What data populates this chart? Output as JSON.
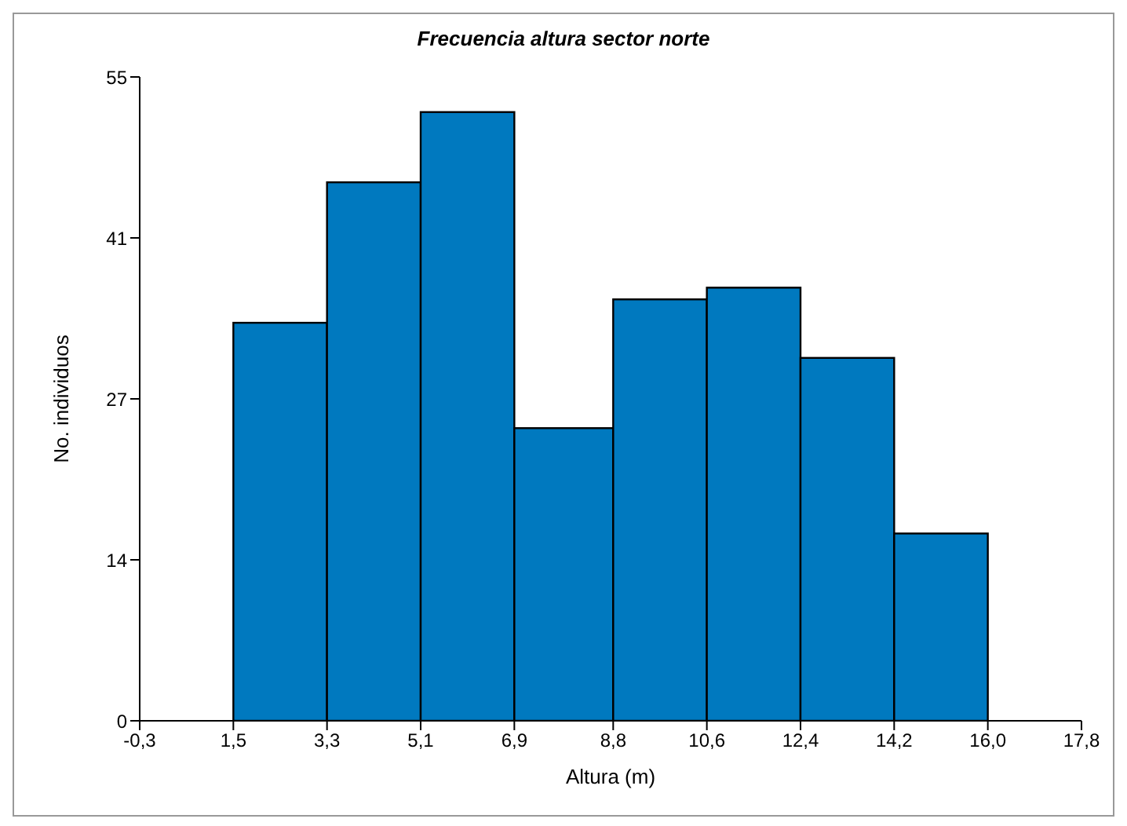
{
  "chart_data": {
    "type": "histogram",
    "title": "Frecuencia altura sector norte",
    "xlabel": "Altura (m)",
    "ylabel": "No. individuos",
    "bins": [
      1.5,
      3.3,
      5.1,
      6.9,
      8.8,
      10.6,
      12.4,
      14.2,
      16.0
    ],
    "values": [
      34,
      46,
      52,
      25,
      36,
      37,
      31,
      16
    ],
    "color": "#0079bf",
    "xlim": [
      -0.3,
      17.8
    ],
    "xticks": [
      {
        "value": -0.3,
        "label": "-0,3"
      },
      {
        "value": 1.5,
        "label": "1,5"
      },
      {
        "value": 3.3,
        "label": "3,3"
      },
      {
        "value": 5.1,
        "label": "5,1"
      },
      {
        "value": 6.9,
        "label": "6,9"
      },
      {
        "value": 8.8,
        "label": "8,8"
      },
      {
        "value": 10.6,
        "label": "10,6"
      },
      {
        "value": 12.4,
        "label": "12,4"
      },
      {
        "value": 14.2,
        "label": "14,2"
      },
      {
        "value": 16.0,
        "label": "16,0"
      },
      {
        "value": 17.8,
        "label": "17,8"
      }
    ],
    "ylim": [
      0,
      55
    ],
    "yticks": [
      0,
      {
        "value": 13.75,
        "label": "14"
      },
      {
        "value": 27.5,
        "label": "27"
      },
      {
        "value": 41.25,
        "label": "41"
      },
      55
    ],
    "grid": false,
    "legend": false
  }
}
